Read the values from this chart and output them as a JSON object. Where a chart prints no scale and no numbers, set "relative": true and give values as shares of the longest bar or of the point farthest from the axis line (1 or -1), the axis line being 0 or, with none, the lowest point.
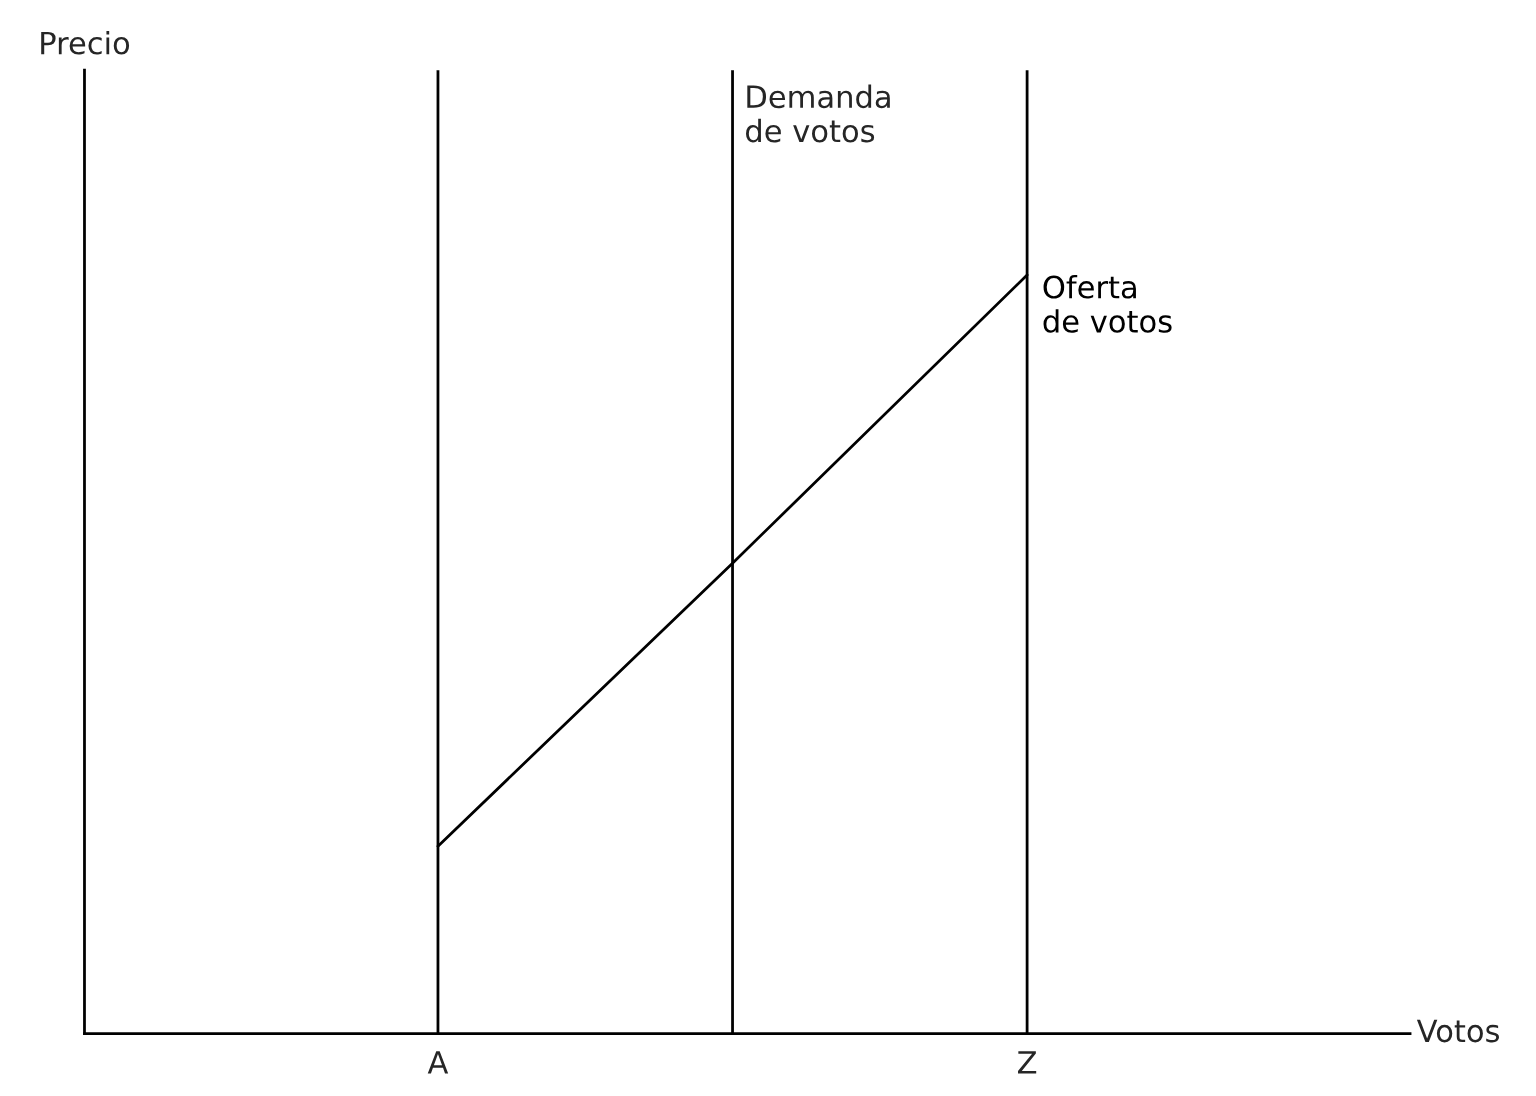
{
  "chart_data": {
    "type": "line",
    "relative": true,
    "xlabel": "Votos",
    "annotations": [
      "Precio",
      "Demanda\nde votos"
    ],
    "categories": [
      "A",
      null,
      "Z"
    ],
    "series": [
      {
        "name": "Oferta\nde votos",
        "color": "#000000",
        "values": [
          0.247,
          0.62,
          1
        ]
      }
    ],
    "grid": "x",
    "legend": false,
    "marker": "none",
    "line_style": "solid"
  }
}
